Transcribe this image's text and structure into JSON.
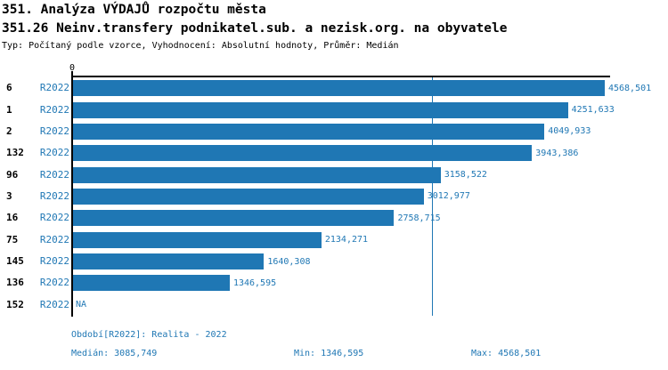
{
  "header": {
    "title": "351. Analýza VÝDAJŮ rozpočtu města",
    "subtitle": "351.26 Neinv.transfery podnikatel.sub. a nezisk.org. na obyvatele",
    "meta": "Typ: Počítaný podle vzorce, Vyhodnocení: Absolutní hodnoty, Průměr: Medián"
  },
  "chart_data": {
    "type": "bar",
    "orientation": "horizontal",
    "title": "351. Analýza VÝDAJŮ rozpočtu města",
    "subtitle": "351.26 Neinv.transfery podnikatel.sub. a nezisk.org. na obyvatele",
    "categories": [
      "6",
      "1",
      "2",
      "132",
      "96",
      "3",
      "16",
      "75",
      "145",
      "136",
      "152"
    ],
    "series": [
      {
        "name": "R2022",
        "values": [
          4568.501,
          4251.633,
          4049.933,
          3943.386,
          3158.522,
          3012.977,
          2758.715,
          2134.271,
          1640.308,
          1346.595,
          null
        ],
        "labels": [
          "4568,501",
          "4251,633",
          "4049,933",
          "3943,386",
          "3158,522",
          "3012,977",
          "2758,715",
          "2134,271",
          "1640,308",
          "1346,595",
          "NA"
        ]
      }
    ],
    "median_value": 3085.749,
    "x_axis": {
      "zero_tick_label": "0",
      "xlim": [
        0,
        4607
      ]
    },
    "grid": false,
    "legend": false,
    "bar_color": "#1f77b4",
    "median_line_color": "#1f77b4"
  },
  "footer": {
    "period": "Období[R2022]: Realita - 2022",
    "median": "Medián: 3085,749",
    "min": "Min: 1346,595",
    "max": "Max: 4568,501"
  },
  "colors": {
    "accent_blue": "#1f77b4",
    "axis_black": "#000000",
    "background": "#ffffff"
  }
}
